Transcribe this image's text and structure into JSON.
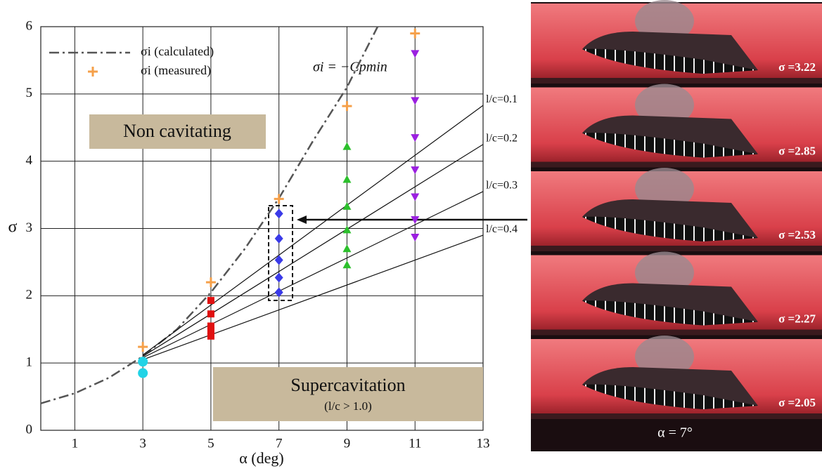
{
  "chart_data": {
    "type": "scatter",
    "xlabel": "α (deg)",
    "ylabel": "σ",
    "xlim": [
      0,
      13
    ],
    "xticks": [
      1,
      3,
      5,
      7,
      9,
      11,
      13
    ],
    "ylim": [
      0,
      6
    ],
    "yticks": [
      0,
      1,
      2,
      3,
      4,
      5,
      6
    ],
    "grid": true,
    "legend": "upper left",
    "series": [
      {
        "name": "σi (calculated)",
        "style": "dashdot",
        "color": "#555555",
        "legend": true,
        "x": [
          0,
          1,
          2,
          3,
          4,
          5,
          6,
          7,
          8,
          9,
          9.9
        ],
        "values": [
          0.4,
          0.55,
          0.78,
          1.1,
          1.5,
          2.05,
          2.7,
          3.45,
          4.3,
          5.1,
          6
        ]
      },
      {
        "name": "σi (measured)",
        "marker": "plus",
        "color": "#f5a04a",
        "legend": true,
        "x": [
          3,
          5,
          7,
          9,
          11
        ],
        "values": [
          1.24,
          2.2,
          3.44,
          4.82,
          5.9
        ]
      },
      {
        "name": "l/c=0.1",
        "style": "solid",
        "color": "#111111",
        "end_label": true,
        "x": [
          3,
          13
        ],
        "values": [
          1.12,
          4.83
        ]
      },
      {
        "name": "l/c=0.2",
        "style": "solid",
        "color": "#111111",
        "end_label": true,
        "x": [
          3,
          13
        ],
        "values": [
          1.1,
          4.25
        ]
      },
      {
        "name": "l/c=0.3",
        "style": "solid",
        "color": "#111111",
        "end_label": true,
        "x": [
          3,
          13
        ],
        "values": [
          1.08,
          3.55
        ]
      },
      {
        "name": "l/c=0.4",
        "style": "solid",
        "color": "#111111",
        "end_label": true,
        "x": [
          3,
          13
        ],
        "values": [
          1.05,
          2.9
        ]
      },
      {
        "marker": "circle",
        "color": "#22d3e6",
        "x": [
          3,
          3
        ],
        "values": [
          1.02,
          0.85
        ]
      },
      {
        "marker": "square",
        "color": "#e01010",
        "x": [
          5,
          5,
          5,
          5,
          5
        ],
        "values": [
          1.93,
          1.73,
          1.55,
          1.48,
          1.4
        ]
      },
      {
        "marker": "diamond",
        "color": "#3a3ae8",
        "x": [
          7,
          7,
          7,
          7,
          7
        ],
        "values": [
          3.22,
          2.85,
          2.53,
          2.27,
          2.05
        ]
      },
      {
        "marker": "triangle-up",
        "color": "#2cc02c",
        "x": [
          9,
          9,
          9,
          9,
          9,
          9
        ],
        "values": [
          4.22,
          3.73,
          3.33,
          2.98,
          2.7,
          2.46
        ]
      },
      {
        "marker": "triangle-down",
        "color": "#9b20e0",
        "x": [
          11,
          11,
          11,
          11,
          11,
          11,
          11
        ],
        "values": [
          5.6,
          4.9,
          4.35,
          3.87,
          3.47,
          3.13,
          2.87
        ]
      }
    ],
    "annotations": {
      "formula": "σi = −Cpmin",
      "non_cavitating": "Non cavitating",
      "supercavitation": "Supercavitation",
      "supercavitation_note": "(l/c > 1.0)"
    }
  },
  "photos": {
    "labels": [
      "σ =3.22",
      "σ =2.85",
      "σ =2.53",
      "σ =2.27",
      "σ =2.05"
    ],
    "caption": "α = 7°"
  }
}
